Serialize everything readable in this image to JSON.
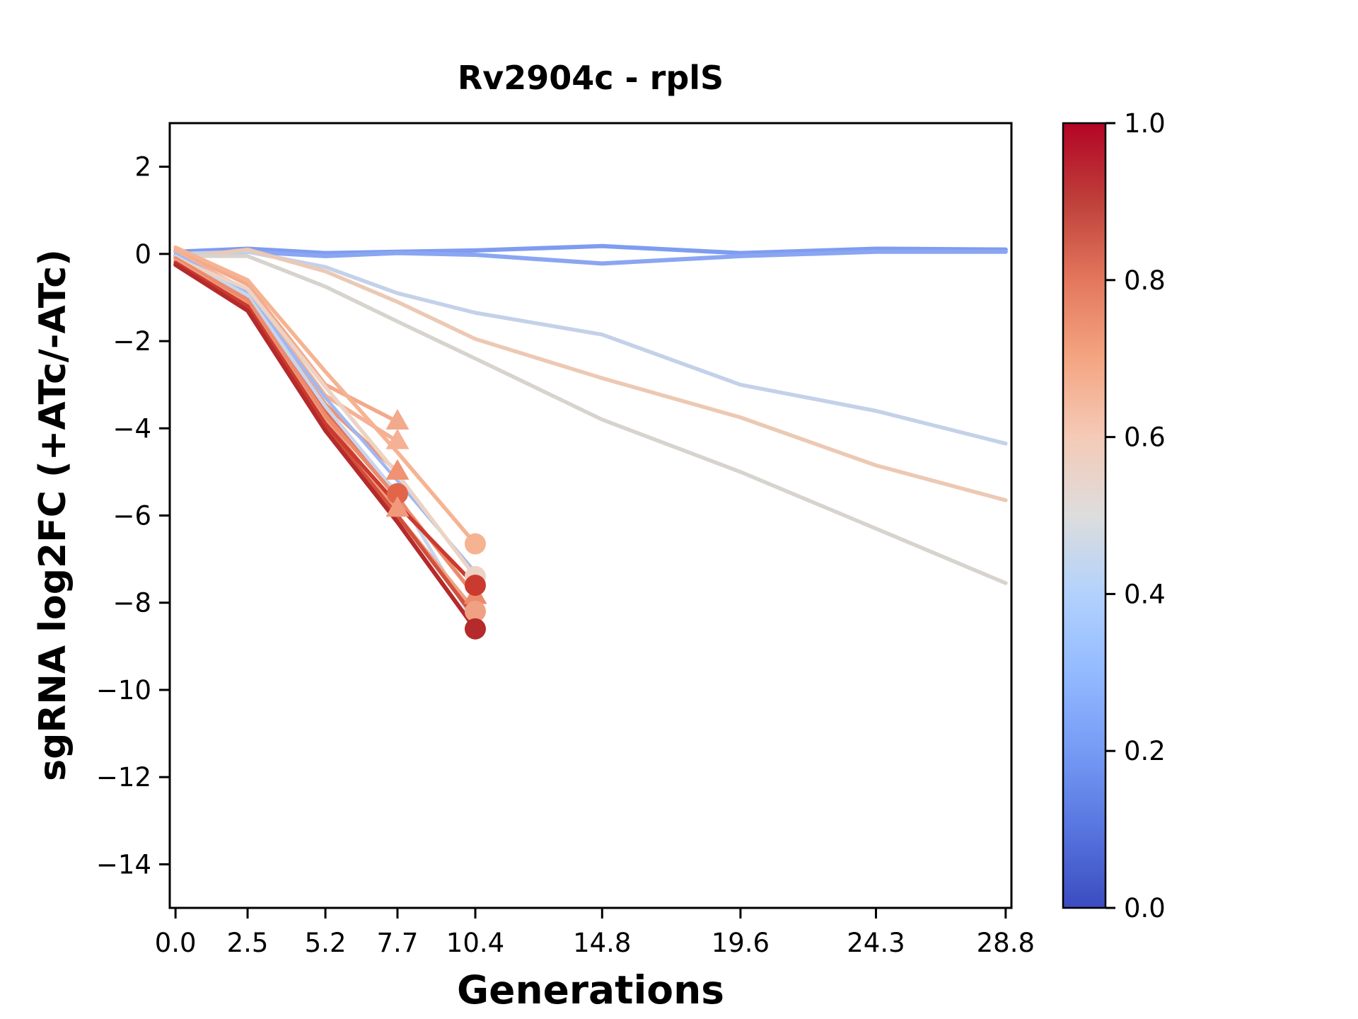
{
  "title": "Rv2904c - rplS",
  "chart_data": {
    "type": "line",
    "title": "Rv2904c - rplS",
    "xlabel": "Generations",
    "ylabel": "sgRNA log2FC (+ATc/-ATc)",
    "xlim": [
      -0.2,
      29.0
    ],
    "ylim": [
      -15,
      3
    ],
    "grid": false,
    "legend": "none (colorbar encodes sgRNA strength 0-1, coolwarm colormap)",
    "x_ticks": {
      "values": [
        0.0,
        2.5,
        5.2,
        7.7,
        10.4,
        14.8,
        19.6,
        24.3,
        28.8
      ],
      "labels": [
        "0.0",
        "2.5",
        "5.2",
        "7.7",
        "10.4",
        "14.8",
        "19.6",
        "24.3",
        "28.8"
      ]
    },
    "y_ticks": {
      "values": [
        2,
        0,
        -2,
        -4,
        -6,
        -8,
        -10,
        -12,
        -14
      ],
      "labels": [
        "2",
        "0",
        "−2",
        "−4",
        "−6",
        "−8",
        "−10",
        "−12",
        "−14"
      ]
    },
    "colorbar": {
      "min": 0.0,
      "max": 1.0,
      "tick_values": [
        0.0,
        0.2,
        0.4,
        0.6,
        0.8,
        1.0
      ],
      "tick_labels": [
        "0.0",
        "0.2",
        "0.4",
        "0.6",
        "0.8",
        "1.0"
      ],
      "cmap": "coolwarm",
      "gradient_stops": [
        {
          "offset": 0.0,
          "color": "#3b4cc0"
        },
        {
          "offset": 0.1,
          "color": "#5775df"
        },
        {
          "offset": 0.2,
          "color": "#759bf5"
        },
        {
          "offset": 0.3,
          "color": "#93baff"
        },
        {
          "offset": 0.4,
          "color": "#b2d2fc"
        },
        {
          "offset": 0.5,
          "color": "#dddddd"
        },
        {
          "offset": 0.6,
          "color": "#f5cab7"
        },
        {
          "offset": 0.7,
          "color": "#f4a582"
        },
        {
          "offset": 0.8,
          "color": "#e3775d"
        },
        {
          "offset": 0.9,
          "color": "#bf403a"
        },
        {
          "offset": 1.0,
          "color": "#b40426"
        }
      ]
    },
    "series": [
      {
        "id": "line-01",
        "color": "#7e9cf0",
        "width": 6,
        "marker": "none",
        "x": [
          0,
          2.5,
          5.2,
          7.7,
          10.4,
          14.8,
          19.6,
          24.3,
          28.8
        ],
        "y": [
          0.05,
          0.12,
          0.02,
          0.05,
          0.08,
          0.18,
          0.02,
          0.12,
          0.1
        ]
      },
      {
        "id": "line-02",
        "color": "#8aa6f2",
        "width": 6,
        "marker": "none",
        "x": [
          0,
          2.5,
          5.2,
          7.7,
          10.4,
          14.8,
          19.6,
          24.3,
          28.8
        ],
        "y": [
          -0.05,
          0.05,
          -0.05,
          0.02,
          -0.02,
          -0.22,
          -0.05,
          0.05,
          0.05
        ]
      },
      {
        "id": "line-03",
        "color": "#c3d1e9",
        "width": 5.5,
        "marker": "none",
        "x": [
          0,
          2.5,
          5.2,
          7.7,
          10.4,
          14.8,
          19.6,
          24.3,
          28.8
        ],
        "y": [
          0.0,
          0.05,
          -0.3,
          -0.9,
          -1.35,
          -1.85,
          -3.0,
          -3.6,
          -4.35
        ]
      },
      {
        "id": "line-04",
        "color": "#ecc9b4",
        "width": 5.5,
        "marker": "none",
        "x": [
          0,
          2.5,
          5.2,
          7.7,
          10.4,
          14.8,
          19.6,
          24.3,
          28.8
        ],
        "y": [
          -0.1,
          0.1,
          -0.4,
          -1.1,
          -1.95,
          -2.85,
          -3.75,
          -4.85,
          -5.65
        ]
      },
      {
        "id": "line-05",
        "color": "#d7d3cd",
        "width": 5.5,
        "marker": "none",
        "x": [
          0,
          2.5,
          5.2,
          7.7,
          10.4,
          14.8,
          19.6,
          24.3,
          28.8
        ],
        "y": [
          -0.05,
          -0.05,
          -0.75,
          -1.55,
          -2.4,
          -3.8,
          -5.0,
          -6.3,
          -7.55
        ]
      },
      {
        "id": "line-06",
        "color": "#f3a98b",
        "width": 5.5,
        "marker": "triangle",
        "x": [
          0,
          2.5,
          5.2,
          7.7
        ],
        "y": [
          0.1,
          -0.7,
          -3.0,
          -3.85
        ]
      },
      {
        "id": "line-07",
        "color": "#f5b095",
        "width": 5.5,
        "marker": "triangle",
        "x": [
          0,
          2.5,
          5.2,
          7.7
        ],
        "y": [
          0.05,
          -0.85,
          -3.25,
          -4.3
        ]
      },
      {
        "id": "line-08",
        "color": "#f19272",
        "width": 5.5,
        "marker": "triangle",
        "x": [
          0,
          2.5,
          5.2,
          7.7
        ],
        "y": [
          -0.1,
          -1.0,
          -3.45,
          -5.0
        ]
      },
      {
        "id": "line-09",
        "color": "#e2654a",
        "width": 5.5,
        "marker": "circle",
        "x": [
          0,
          2.5,
          5.2,
          7.7
        ],
        "y": [
          -0.05,
          -1.1,
          -3.6,
          -5.5
        ]
      },
      {
        "id": "line-10",
        "color": "#f09a7b",
        "width": 5.5,
        "marker": "triangle",
        "x": [
          0,
          2.5,
          5.2,
          7.7
        ],
        "y": [
          -0.15,
          -1.15,
          -3.8,
          -5.85
        ]
      },
      {
        "id": "line-11",
        "color": "#f6b392",
        "width": 5.5,
        "marker": "circle",
        "x": [
          0,
          2.5,
          5.2,
          7.7,
          10.4
        ],
        "y": [
          0.15,
          -0.6,
          -2.7,
          -4.55,
          -6.65
        ]
      },
      {
        "id": "line-12",
        "color": "#9db9f2",
        "width": 4.5,
        "marker": "none",
        "x": [
          0,
          2.5,
          5.2,
          7.7,
          10.4
        ],
        "y": [
          0.0,
          -0.9,
          -3.3,
          -5.2,
          -7.3
        ]
      },
      {
        "id": "line-13",
        "color": "#c8d5ec",
        "width": 5,
        "marker": "none",
        "x": [
          0,
          2.5,
          5.2,
          7.7,
          10.4
        ],
        "y": [
          -0.05,
          -0.95,
          -3.5,
          -5.5,
          -8.5
        ]
      },
      {
        "id": "line-14",
        "color": "#ecd3c3",
        "width": 5.5,
        "marker": "circle",
        "x": [
          0,
          2.5,
          5.2,
          7.7,
          10.4
        ],
        "y": [
          -0.1,
          -0.8,
          -3.05,
          -5.05,
          -7.4
        ]
      },
      {
        "id": "line-15",
        "color": "#ec8b6c",
        "width": 5.5,
        "marker": "triangle",
        "x": [
          0,
          2.5,
          5.2,
          7.7,
          10.4
        ],
        "y": [
          -0.1,
          -1.05,
          -3.7,
          -5.6,
          -7.85
        ]
      },
      {
        "id": "line-16",
        "color": "#f0a183",
        "width": 5.5,
        "marker": "circle",
        "x": [
          0,
          2.5,
          5.2,
          7.7,
          10.4
        ],
        "y": [
          -0.15,
          -1.2,
          -3.85,
          -6.0,
          -8.2
        ]
      },
      {
        "id": "line-17",
        "color": "#d1503c",
        "width": 5.5,
        "marker": "none",
        "x": [
          0,
          2.5,
          5.2,
          7.7,
          10.4
        ],
        "y": [
          -0.2,
          -1.25,
          -3.95,
          -6.0,
          -8.35
        ]
      },
      {
        "id": "line-18",
        "color": "#cb3a2e",
        "width": 5.5,
        "marker": "circle",
        "x": [
          0,
          2.5,
          5.2,
          7.7,
          10.4
        ],
        "y": [
          -0.2,
          -1.2,
          -3.9,
          -5.75,
          -7.6
        ]
      },
      {
        "id": "line-19",
        "color": "#b52a2b",
        "width": 6,
        "marker": "circle",
        "x": [
          0,
          2.5,
          5.2,
          7.7,
          10.4
        ],
        "y": [
          -0.25,
          -1.3,
          -4.05,
          -6.15,
          -8.6
        ]
      }
    ]
  }
}
